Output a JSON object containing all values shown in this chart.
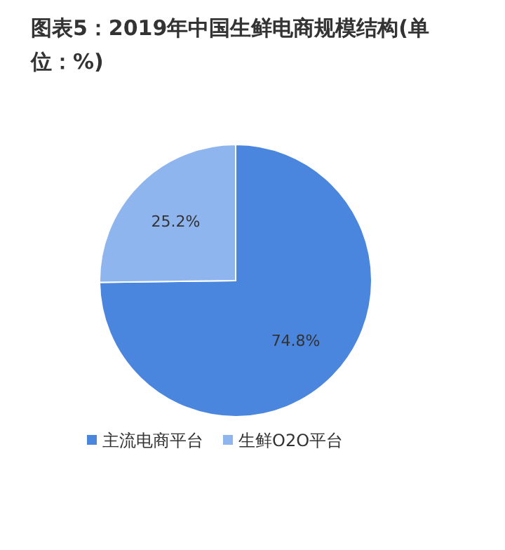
{
  "chart_data": {
    "type": "pie",
    "title": "图表5：2019年中国生鲜电商规模结构(单位：%)",
    "categories": [
      "主流电商平台",
      "生鲜O2O平台"
    ],
    "values": [
      74.8,
      25.2
    ],
    "colors": [
      "#4a85de",
      "#8fb5ef"
    ],
    "value_labels": [
      "74.8%",
      "25.2%"
    ],
    "legend": "bottom"
  }
}
